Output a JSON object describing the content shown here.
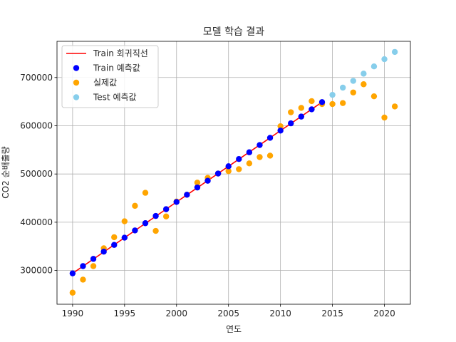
{
  "chart_data": {
    "type": "scatter",
    "title": "모델 학습 결과",
    "xlabel": "연도",
    "ylabel": "CO2 순배출량",
    "xlim": [
      1988.5,
      2022.5
    ],
    "ylim": [
      230000,
      775000
    ],
    "xticks": [
      1990,
      1995,
      2000,
      2005,
      2010,
      2015,
      2020
    ],
    "yticks": [
      300000,
      400000,
      500000,
      600000,
      700000
    ],
    "grid": true,
    "legend_position": "upper-left",
    "series": [
      {
        "name": "Train 회귀직선",
        "kind": "line",
        "color": "#ff0000",
        "x": [
          1990,
          2014
        ],
        "y": [
          294000,
          649000
        ]
      },
      {
        "name": "Train 예측값",
        "kind": "scatter",
        "color": "#0000ff",
        "x": [
          1990,
          1991,
          1992,
          1993,
          1994,
          1995,
          1996,
          1997,
          1998,
          1999,
          2000,
          2001,
          2002,
          2003,
          2004,
          2005,
          2006,
          2007,
          2008,
          2009,
          2010,
          2011,
          2012,
          2013,
          2014
        ],
        "y": [
          294000,
          309000,
          324000,
          339000,
          353000,
          368000,
          383000,
          398000,
          413000,
          427000,
          442000,
          457000,
          472000,
          486000,
          501000,
          516000,
          531000,
          545000,
          560000,
          575000,
          590000,
          605000,
          619000,
          634000,
          649000
        ]
      },
      {
        "name": "실제값",
        "kind": "scatter",
        "color": "#ffa500",
        "x": [
          1990,
          1991,
          1992,
          1993,
          1994,
          1995,
          1996,
          1997,
          1998,
          1999,
          2000,
          2001,
          2002,
          2003,
          2004,
          2005,
          2006,
          2007,
          2008,
          2009,
          2010,
          2011,
          2012,
          2013,
          2014,
          2015,
          2016,
          2017,
          2018,
          2019,
          2020,
          2021
        ],
        "y": [
          254000,
          281000,
          309000,
          346000,
          369000,
          402000,
          434000,
          461000,
          382000,
          412000,
          443000,
          457000,
          482000,
          492000,
          501000,
          506000,
          510000,
          522000,
          535000,
          538000,
          599000,
          628000,
          637000,
          651000,
          645000,
          645000,
          647000,
          669000,
          686000,
          661000,
          617000,
          640000
        ]
      },
      {
        "name": "Test 예측값",
        "kind": "scatter",
        "color": "#87ceeb",
        "x": [
          2015,
          2016,
          2017,
          2018,
          2019,
          2020,
          2021
        ],
        "y": [
          664000,
          679000,
          693000,
          708000,
          723000,
          738000,
          753000
        ]
      }
    ]
  }
}
